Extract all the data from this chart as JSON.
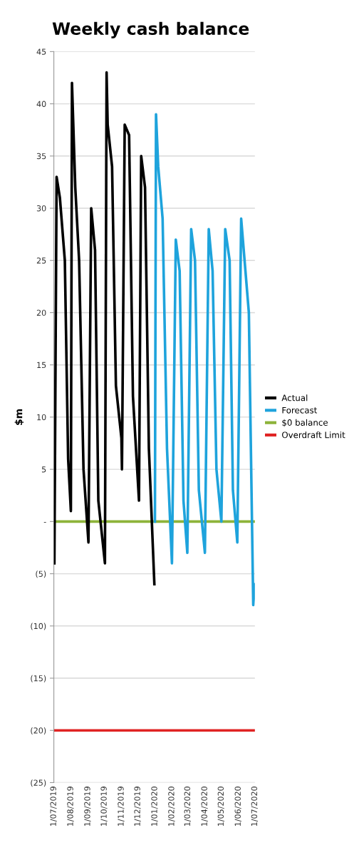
{
  "chart_data": {
    "type": "line",
    "title": "Weekly cash balance",
    "ylabel": "$m",
    "xlim": [
      "2019-07-01",
      "2020-07-01"
    ],
    "xticks": [
      {
        "value": "2019-07-01",
        "label": "1/07/2019"
      },
      {
        "value": "2019-08-01",
        "label": "1/08/2019"
      },
      {
        "value": "2019-09-01",
        "label": "1/09/2019"
      },
      {
        "value": "2019-10-01",
        "label": "1/10/2019"
      },
      {
        "value": "2019-11-01",
        "label": "1/11/2019"
      },
      {
        "value": "2019-12-01",
        "label": "1/12/2019"
      },
      {
        "value": "2020-01-01",
        "label": "1/01/2020"
      },
      {
        "value": "2020-02-01",
        "label": "1/02/2020"
      },
      {
        "value": "2020-03-01",
        "label": "1/03/2020"
      },
      {
        "value": "2020-04-01",
        "label": "1/04/2020"
      },
      {
        "value": "2020-05-01",
        "label": "1/05/2020"
      },
      {
        "value": "2020-06-01",
        "label": "1/06/2020"
      },
      {
        "value": "2020-07-01",
        "label": "1/07/2020"
      }
    ],
    "ylim": [
      -25,
      45
    ],
    "yticks": [
      {
        "value": -25,
        "label": "(25)"
      },
      {
        "value": -20,
        "label": "(20)"
      },
      {
        "value": -15,
        "label": "(15)"
      },
      {
        "value": -10,
        "label": "(10)"
      },
      {
        "value": -5,
        "label": "(5)"
      },
      {
        "value": 0,
        "label": "-"
      },
      5,
      10,
      15,
      20,
      25,
      30,
      35,
      40,
      45
    ],
    "grid": "y",
    "legend": "right",
    "series": [
      {
        "name": "Actual",
        "color": "#000000",
        "x": [
          "2019-07-02",
          "2019-07-06",
          "2019-07-12",
          "2019-07-21",
          "2019-07-27",
          "2019-08-01",
          "2019-08-03",
          "2019-08-09",
          "2019-08-16",
          "2019-08-24",
          "2019-09-02",
          "2019-09-07",
          "2019-09-14",
          "2019-09-20",
          "2019-10-02",
          "2019-10-05",
          "2019-10-07",
          "2019-10-15",
          "2019-10-22",
          "2019-11-01",
          "2019-11-02",
          "2019-11-07",
          "2019-11-15",
          "2019-11-22",
          "2019-12-03",
          "2019-12-07",
          "2019-12-14",
          "2019-12-21",
          "2019-12-31"
        ],
        "values": [
          -4,
          33,
          31,
          25,
          6,
          1,
          42,
          32,
          25,
          5,
          -2,
          30,
          26,
          2,
          -4,
          43,
          38,
          34,
          13,
          8,
          5,
          38,
          37,
          12,
          2,
          35,
          32,
          7,
          -6
        ]
      },
      {
        "name": "Forecast",
        "color": "#1ea3dc",
        "x": [
          "2020-01-01",
          "2020-01-03",
          "2020-01-07",
          "2020-01-15",
          "2020-01-23",
          "2020-02-01",
          "2020-02-08",
          "2020-02-15",
          "2020-02-22",
          "2020-02-29",
          "2020-03-07",
          "2020-03-14",
          "2020-03-21",
          "2020-04-01",
          "2020-04-08",
          "2020-04-15",
          "2020-04-22",
          "2020-05-01",
          "2020-05-08",
          "2020-05-16",
          "2020-05-22",
          "2020-05-30",
          "2020-06-06",
          "2020-06-20",
          "2020-06-28",
          "2020-07-01"
        ],
        "values": [
          0,
          39,
          34,
          29,
          7,
          -4,
          27,
          24,
          2,
          -3,
          28,
          25,
          3,
          -3,
          28,
          24,
          5,
          0,
          28,
          25,
          3,
          -2,
          29,
          20,
          -8,
          -6
        ]
      }
    ],
    "ref_lines": [
      {
        "axis": "y",
        "value": 0,
        "label": "$0 balance",
        "color": "#8db33a"
      },
      {
        "axis": "y",
        "value": -20,
        "label": "Overdraft Limit",
        "color": "#e02424"
      }
    ]
  }
}
